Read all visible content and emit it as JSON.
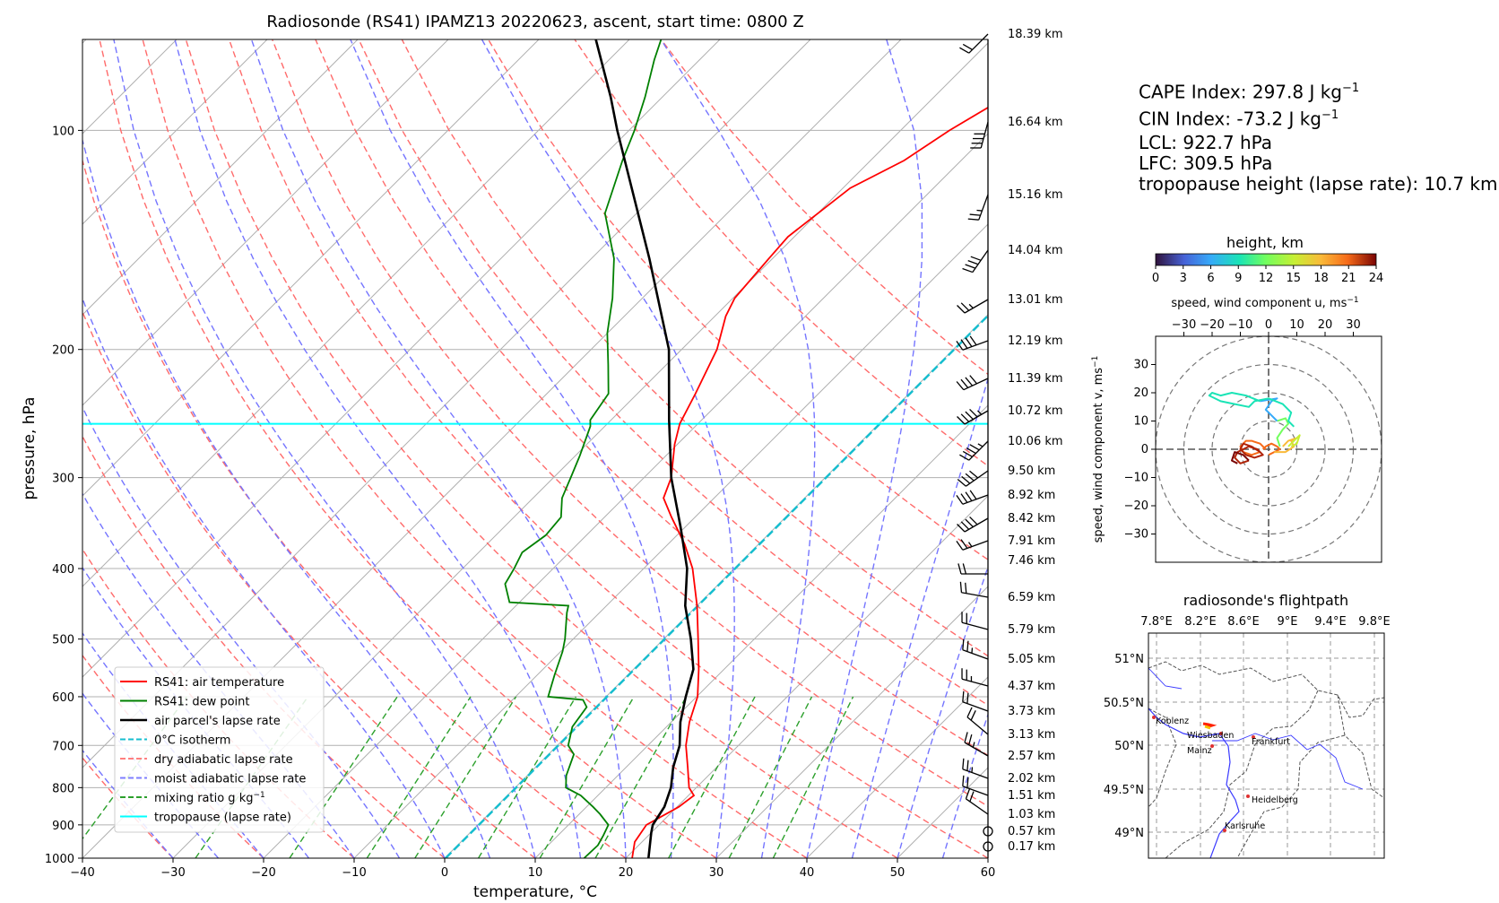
{
  "chart_data": [
    {
      "type": "skew-t log-p diagram",
      "title": "Radiosonde (RS41) IPAMZ13 20220623, ascent, start time: 0800 Z",
      "xlabel": "temperature, °C",
      "ylabel": "pressure, hPa",
      "x_ticks": [
        "−40",
        "−30",
        "−20",
        "−10",
        "0",
        "10",
        "20",
        "30",
        "40",
        "50",
        "60"
      ],
      "y_ticks": [
        "100",
        "200",
        "300",
        "400",
        "500",
        "600",
        "700",
        "800",
        "900",
        "1000"
      ],
      "xlim": [
        -40,
        60
      ],
      "ylim_pressure": [
        1000,
        75
      ],
      "y_scale": "log",
      "grid": true,
      "legend_position": "lower-left",
      "legend": [
        {
          "label": "RS41: air temperature",
          "color": "#ff0000",
          "style": "solid"
        },
        {
          "label": "RS41: dew point",
          "color": "#008000",
          "style": "solid"
        },
        {
          "label": "air parcel's lapse rate",
          "color": "#000000",
          "style": "solid"
        },
        {
          "label": "0°C isotherm",
          "color": "#17becf",
          "style": "dashed"
        },
        {
          "label": "dry adiabatic lapse rate",
          "color": "#ff7f7f",
          "style": "dashed"
        },
        {
          "label": "moist adiabatic lapse rate",
          "color": "#7f7fff",
          "style": "dashed"
        },
        {
          "label": "mixing ratio g kg",
          "label_sup": "−1",
          "color": "#2ca02c",
          "style": "dashed"
        },
        {
          "label": "tropopause (lapse rate)",
          "color": "#00ffff",
          "style": "solid"
        }
      ],
      "series": [
        {
          "name": "RS41: air temperature",
          "points": [
            [
              1000,
              20.7
            ],
            [
              950,
              19.2
            ],
            [
              900,
              18.6
            ],
            [
              850,
              20.2
            ],
            [
              820,
              20.6
            ],
            [
              800,
              19.2
            ],
            [
              750,
              16.8
            ],
            [
              700,
              14.2
            ],
            [
              650,
              12.0
            ],
            [
              600,
              10.1
            ],
            [
              550,
              7.2
            ],
            [
              500,
              3.8
            ],
            [
              450,
              0.0
            ],
            [
              400,
              -4.6
            ],
            [
              370,
              -8.2
            ],
            [
              340,
              -12.6
            ],
            [
              320,
              -15.6
            ],
            [
              300,
              -17.0
            ],
            [
              270,
              -20.3
            ],
            [
              253,
              -22.0
            ],
            [
              230,
              -23.6
            ],
            [
              200,
              -26.1
            ],
            [
              180,
              -28.8
            ],
            [
              170,
              -29.8
            ],
            [
              150,
              -30.4
            ],
            [
              140,
              -30.7
            ],
            [
              120,
              -29.2
            ],
            [
              110,
              -26.3
            ],
            [
              100,
              -24.6
            ],
            [
              90,
              -22.1
            ],
            [
              80,
              -19.0
            ],
            [
              75,
              -17.8
            ]
          ]
        },
        {
          "name": "RS41: dew point",
          "points": [
            [
              1000,
              15.4
            ],
            [
              960,
              15.5
            ],
            [
              930,
              15.0
            ],
            [
              900,
              14.4
            ],
            [
              870,
              12.3
            ],
            [
              850,
              10.7
            ],
            [
              820,
              8.1
            ],
            [
              800,
              5.6
            ],
            [
              770,
              4.3
            ],
            [
              720,
              2.8
            ],
            [
              700,
              1.2
            ],
            [
              660,
              -0.4
            ],
            [
              620,
              -1.0
            ],
            [
              606,
              -2.2
            ],
            [
              600,
              -6.4
            ],
            [
              560,
              -8.1
            ],
            [
              520,
              -9.8
            ],
            [
              500,
              -10.9
            ],
            [
              460,
              -13.6
            ],
            [
              450,
              -14.2
            ],
            [
              445,
              -21.1
            ],
            [
              420,
              -23.6
            ],
            [
              400,
              -24.3
            ],
            [
              380,
              -25.2
            ],
            [
              360,
              -24.5
            ],
            [
              340,
              -24.8
            ],
            [
              320,
              -26.8
            ],
            [
              300,
              -28.1
            ],
            [
              280,
              -29.5
            ],
            [
              255,
              -31.6
            ],
            [
              250,
              -32.3
            ],
            [
              230,
              -33.2
            ],
            [
              210,
              -36.4
            ],
            [
              190,
              -40.0
            ],
            [
              170,
              -43.3
            ],
            [
              150,
              -47.5
            ],
            [
              130,
              -53.5
            ],
            [
              110,
              -57.4
            ],
            [
              100,
              -59.4
            ],
            [
              90,
              -61.9
            ],
            [
              80,
              -65.0
            ],
            [
              75,
              -66.5
            ]
          ]
        },
        {
          "name": "air parcel's lapse rate",
          "points": [
            [
              1000,
              22.5
            ],
            [
              922.7,
              20.0
            ],
            [
              900,
              19.3
            ],
            [
              850,
              18.6
            ],
            [
              800,
              17.2
            ],
            [
              750,
              15.2
            ],
            [
              700,
              13.5
            ],
            [
              650,
              11.0
            ],
            [
              600,
              8.8
            ],
            [
              550,
              6.6
            ],
            [
              500,
              3.0
            ],
            [
              450,
              -1.3
            ],
            [
              400,
              -5.2
            ],
            [
              350,
              -10.6
            ],
            [
              300,
              -17.0
            ],
            [
              250,
              -23.6
            ],
            [
              200,
              -31.4
            ],
            [
              150,
              -43.6
            ],
            [
              100,
              -61.3
            ],
            [
              90,
              -65.7
            ],
            [
              75,
              -73.7
            ]
          ]
        }
      ],
      "tropopause_pressure_hpa": 253,
      "heights_km": [
        "0.17 km",
        "0.57 km",
        "1.03 km",
        "1.51 km",
        "2.02 km",
        "2.57 km",
        "3.13 km",
        "3.73 km",
        "4.37 km",
        "5.05 km",
        "5.79 km",
        "6.59 km",
        "7.46 km",
        "7.91 km",
        "8.42 km",
        "8.92 km",
        "9.50 km",
        "10.06 km",
        "10.72 km",
        "11.39 km",
        "12.19 km",
        "13.01 km",
        "14.04 km",
        "15.16 km",
        "16.64 km",
        "18.39 km"
      ]
    },
    {
      "type": "hodograph",
      "title": "height, km",
      "colorbar_ticks": [
        "0",
        "3",
        "6",
        "9",
        "12",
        "15",
        "18",
        "21",
        "24"
      ],
      "xlabel": "speed, wind component u, ms",
      "ylabel": "speed, wind component v, ms",
      "x_ticks": [
        "−30",
        "−20",
        "−10",
        "0",
        "10",
        "20",
        "30"
      ],
      "y_ticks": [
        "30",
        "20",
        "10",
        "0",
        "−10",
        "−20",
        "−30"
      ],
      "range": [
        -40,
        40
      ]
    },
    {
      "type": "map",
      "title": "radiosonde's flightpath",
      "lon_ticks": [
        "7.8°E",
        "8.2°E",
        "8.6°E",
        "9°E",
        "9.4°E",
        "9.8°E"
      ],
      "lat_ticks": [
        "51°N",
        "50.5°N",
        "50°N",
        "49.5°N",
        "49°N"
      ],
      "cities": [
        "Koblenz",
        "Wiesbaden",
        "Frankfurt",
        "Mainz",
        "Heidelberg",
        "Karlsruhe"
      ]
    }
  ],
  "indices": {
    "cape": "CAPE Index: 297.8 J kg",
    "cin": "CIN Index: -73.2 J kg",
    "unit_sup": "−1",
    "lcl": "LCL: 922.7 hPa",
    "lfc": "LFC: 309.5 hPa",
    "tropopause": "tropopause height (lapse rate): 10.7 km"
  },
  "hodo_sup": "−1"
}
